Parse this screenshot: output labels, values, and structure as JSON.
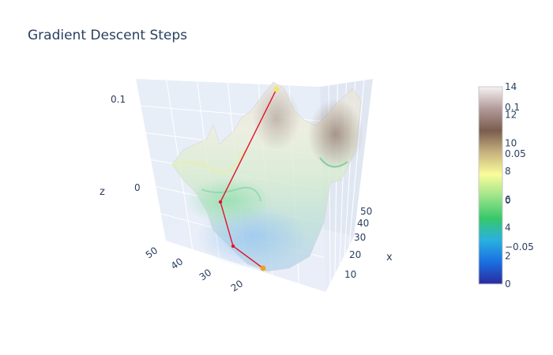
{
  "chart_data": {
    "type": "surface",
    "title": "Gradient Descent Steps",
    "axes": {
      "x": {
        "label": "x",
        "ticks": [
          "10",
          "20",
          "30",
          "40",
          "50"
        ]
      },
      "y": {
        "label": "",
        "ticks": [
          "20",
          "30",
          "40",
          "50"
        ]
      },
      "z": {
        "label": "z",
        "ticks": [
          "0",
          "0.1"
        ]
      }
    },
    "colorbar": {
      "colorscale": [
        "#2a2aa0",
        "#1a6fe0",
        "#2ab0e0",
        "#37c86a",
        "#9ce48a",
        "#fafc9a",
        "#c7b27e",
        "#7a5d4e",
        "#b39a9a",
        "#f6f2f2"
      ],
      "ticks_a": [
        "0",
        "2",
        "4",
        "6",
        "8",
        "10",
        "12",
        "14"
      ],
      "ticks_b": [
        "−0.05",
        "0",
        "0.05",
        "0.1"
      ]
    },
    "descent_path": {
      "color": "#e3122a",
      "start_marker_color": "#f1e66a",
      "end_marker_color": "#f0a020",
      "points": [
        {
          "x": 50,
          "y": 22,
          "z": 0.11
        },
        {
          "x": 35,
          "y": 38,
          "z": 0.02
        },
        {
          "x": 18,
          "y": 40,
          "z": -0.02
        },
        {
          "x": 10,
          "y": 28,
          "z": -0.04
        }
      ]
    },
    "grid": true
  }
}
